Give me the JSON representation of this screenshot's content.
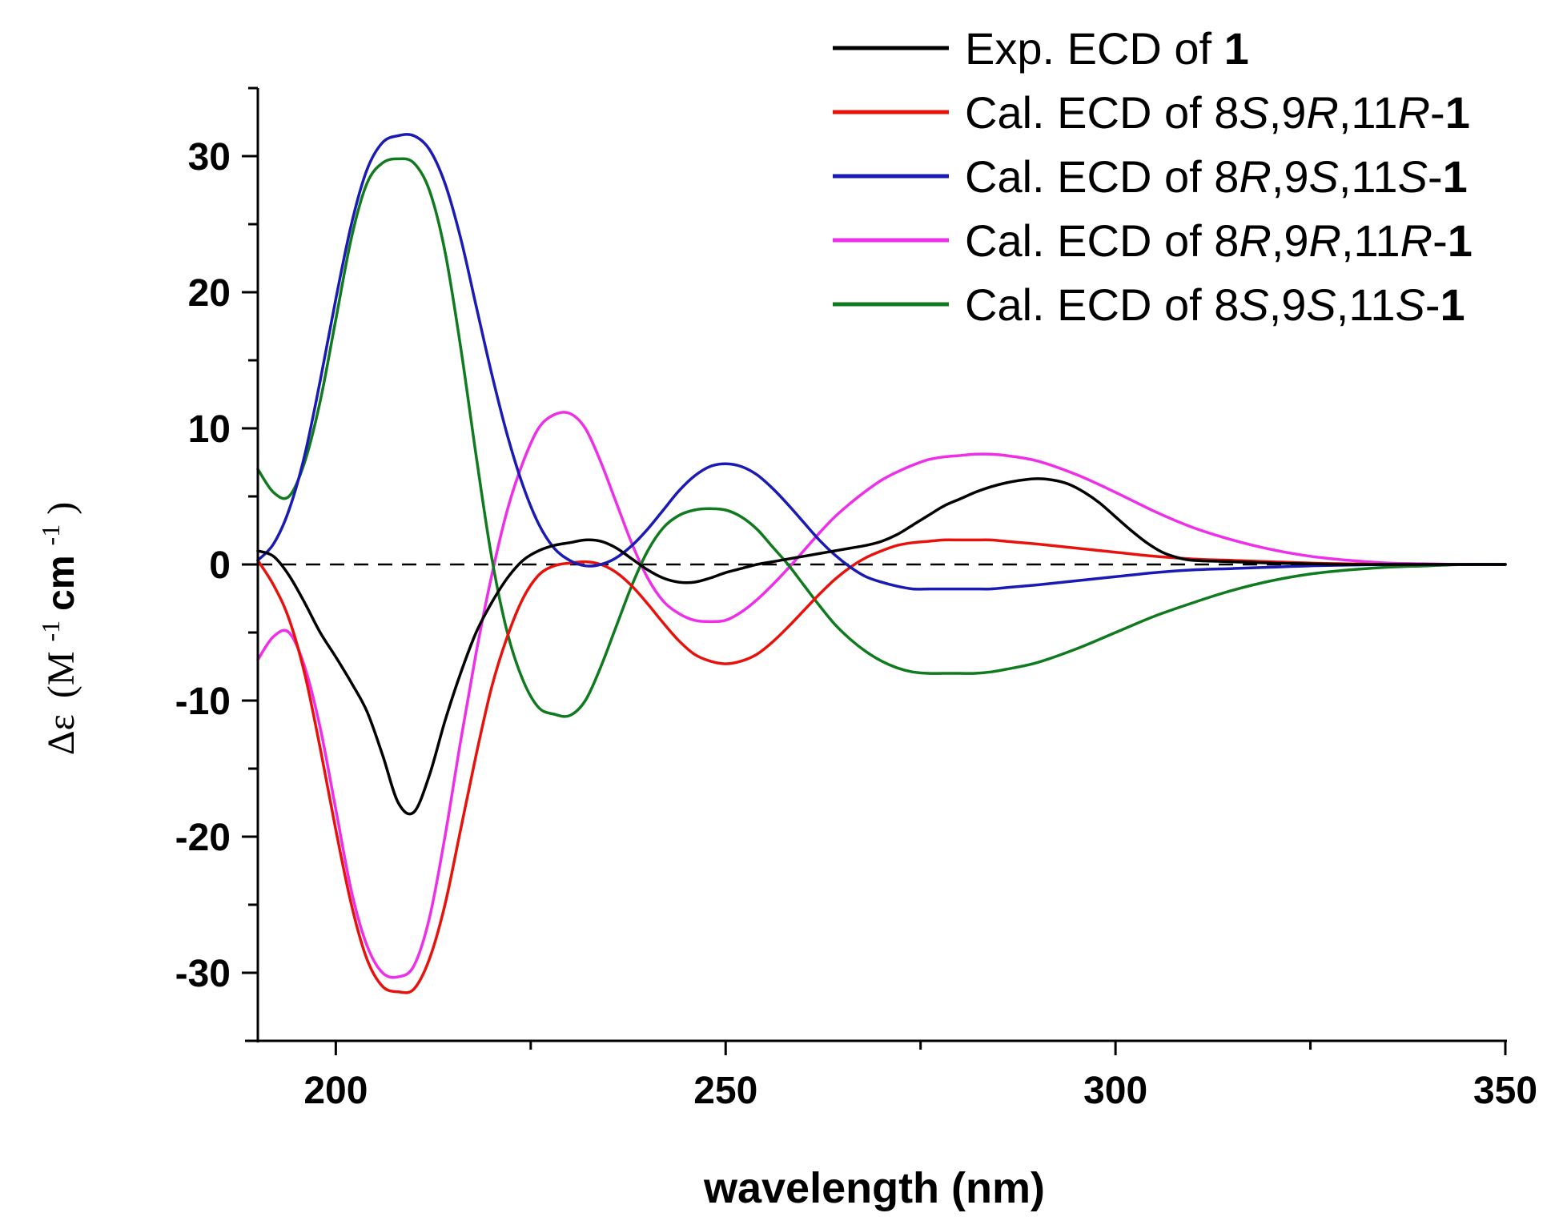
{
  "chart_data": {
    "type": "line",
    "xlabel": "wavelength (nm)",
    "ylabel": {
      "symbol": "Δε",
      "open": "(M",
      "sup1": "-1",
      "mid": " cm",
      "sup2": "-1",
      "close": ")"
    },
    "xlim": [
      190,
      350
    ],
    "ylim": [
      -35,
      35
    ],
    "x_major_ticks": [
      200,
      250,
      300,
      350
    ],
    "x_minor_ticks": [
      225,
      275,
      325
    ],
    "y_major_ticks": [
      -30,
      -20,
      -10,
      0,
      10,
      20,
      30
    ],
    "y_minor_ticks": [
      -35,
      -25,
      -15,
      -5,
      5,
      15,
      25,
      35
    ],
    "x_tick_labels": [
      "200",
      "250",
      "300",
      "350"
    ],
    "y_tick_labels": [
      "-30",
      "-20",
      "-10",
      "0",
      "10",
      "20",
      "30"
    ],
    "zero_line": {
      "y": 0,
      "style": "dashed",
      "color": "#000000"
    },
    "legend_position": "top-right",
    "series": [
      {
        "name": "Exp. ECD of 1",
        "legend": {
          "prefix": "Exp. ECD of ",
          "parts": [
            {
              "t": "1",
              "s": "bold"
            }
          ]
        },
        "color": "#000000",
        "x": [
          190,
          192,
          194,
          196,
          198,
          200,
          202,
          204,
          206,
          208,
          210,
          212,
          214,
          216,
          218,
          220,
          222,
          224,
          226,
          228,
          230,
          232,
          234,
          236,
          238,
          240,
          242,
          244,
          246,
          248,
          250,
          252,
          254,
          256,
          258,
          260,
          262,
          264,
          266,
          268,
          270,
          272,
          274,
          276,
          278,
          280,
          282,
          284,
          286,
          288,
          290,
          292,
          294,
          296,
          298,
          300,
          302,
          304,
          306,
          308,
          310,
          315,
          320,
          325,
          330,
          335,
          340,
          345,
          350
        ],
        "y": [
          1.0,
          0.6,
          -0.8,
          -2.8,
          -5.0,
          -6.8,
          -8.7,
          -10.8,
          -14.0,
          -17.5,
          -18.2,
          -15.5,
          -11.5,
          -8.0,
          -5.0,
          -2.8,
          -1.0,
          0.3,
          1.0,
          1.4,
          1.6,
          1.8,
          1.7,
          1.2,
          0.4,
          -0.4,
          -1.0,
          -1.3,
          -1.3,
          -1.0,
          -0.6,
          -0.3,
          0.0,
          0.2,
          0.4,
          0.6,
          0.8,
          1.0,
          1.2,
          1.4,
          1.7,
          2.2,
          2.9,
          3.6,
          4.3,
          4.8,
          5.3,
          5.7,
          6.0,
          6.2,
          6.3,
          6.2,
          5.9,
          5.3,
          4.5,
          3.5,
          2.5,
          1.6,
          0.9,
          0.5,
          0.3,
          0.2,
          0.1,
          0.05,
          0.0,
          0.0,
          0.0,
          0.0,
          0.0
        ]
      },
      {
        "name": "Cal. ECD of 8S,9R,11R-1",
        "legend": {
          "prefix": "Cal. ECD of ",
          "parts": [
            {
              "t": "8",
              "s": "n"
            },
            {
              "t": "S",
              "s": "i"
            },
            {
              "t": ",9",
              "s": "n"
            },
            {
              "t": "R",
              "s": "i"
            },
            {
              "t": ",11",
              "s": "n"
            },
            {
              "t": "R",
              "s": "i"
            },
            {
              "t": "-",
              "s": "n"
            },
            {
              "t": "1",
              "s": "bold"
            }
          ]
        },
        "color": "#e8120c",
        "x": [
          190,
          192,
          194,
          196,
          198,
          200,
          202,
          204,
          206,
          208,
          210,
          212,
          214,
          216,
          218,
          220,
          222,
          224,
          226,
          228,
          230,
          232,
          234,
          236,
          238,
          240,
          242,
          244,
          246,
          248,
          250,
          252,
          254,
          256,
          258,
          260,
          262,
          264,
          266,
          268,
          270,
          272,
          274,
          276,
          278,
          280,
          282,
          284,
          286,
          290,
          295,
          300,
          305,
          310,
          315,
          320,
          325,
          330,
          335,
          340,
          345,
          350
        ],
        "y": [
          0.3,
          -1.5,
          -4.0,
          -8.0,
          -13.5,
          -19.5,
          -25.0,
          -29.0,
          -31.0,
          -31.4,
          -31.2,
          -29.0,
          -25.0,
          -19.5,
          -14.0,
          -9.0,
          -5.3,
          -2.5,
          -0.8,
          -0.1,
          0.1,
          0.2,
          0.0,
          -0.6,
          -1.6,
          -2.9,
          -4.3,
          -5.6,
          -6.6,
          -7.1,
          -7.3,
          -7.1,
          -6.6,
          -5.7,
          -4.6,
          -3.4,
          -2.2,
          -1.1,
          -0.2,
          0.5,
          1.0,
          1.4,
          1.6,
          1.7,
          1.8,
          1.8,
          1.8,
          1.8,
          1.7,
          1.5,
          1.2,
          0.9,
          0.6,
          0.4,
          0.3,
          0.2,
          0.1,
          0.05,
          0.0,
          0.0,
          0.0,
          0.0
        ]
      },
      {
        "name": "Cal. ECD of 8R,9S,11S-1",
        "legend": {
          "prefix": "Cal. ECD of ",
          "parts": [
            {
              "t": "8",
              "s": "n"
            },
            {
              "t": "R",
              "s": "i"
            },
            {
              "t": ",9",
              "s": "n"
            },
            {
              "t": "S",
              "s": "i"
            },
            {
              "t": ",11",
              "s": "n"
            },
            {
              "t": "S",
              "s": "i"
            },
            {
              "t": "-",
              "s": "n"
            },
            {
              "t": "1",
              "s": "bold"
            }
          ]
        },
        "color": "#1a1ab4",
        "x": [
          190,
          192,
          194,
          196,
          198,
          200,
          202,
          204,
          206,
          208,
          210,
          212,
          214,
          216,
          218,
          220,
          222,
          224,
          226,
          228,
          230,
          232,
          234,
          236,
          238,
          240,
          242,
          244,
          246,
          248,
          250,
          252,
          254,
          256,
          258,
          260,
          262,
          264,
          266,
          268,
          270,
          272,
          274,
          276,
          278,
          280,
          282,
          284,
          286,
          290,
          295,
          300,
          305,
          310,
          315,
          320,
          325,
          330,
          335,
          340,
          345,
          350
        ],
        "y": [
          0.3,
          1.5,
          4.0,
          8.0,
          13.5,
          19.5,
          25.0,
          29.0,
          31.0,
          31.5,
          31.5,
          30.5,
          28.0,
          24.0,
          19.0,
          14.0,
          9.5,
          5.8,
          3.0,
          1.2,
          0.3,
          -0.1,
          0.0,
          0.5,
          1.4,
          2.6,
          4.0,
          5.4,
          6.5,
          7.2,
          7.4,
          7.2,
          6.6,
          5.6,
          4.4,
          3.1,
          1.8,
          0.7,
          -0.2,
          -0.9,
          -1.3,
          -1.6,
          -1.8,
          -1.8,
          -1.8,
          -1.8,
          -1.8,
          -1.8,
          -1.7,
          -1.5,
          -1.2,
          -0.9,
          -0.6,
          -0.4,
          -0.3,
          -0.2,
          -0.1,
          -0.05,
          0.0,
          0.0,
          0.0,
          0.0
        ]
      },
      {
        "name": "Cal. ECD of 8R,9R,11R-1",
        "legend": {
          "prefix": "Cal. ECD of ",
          "parts": [
            {
              "t": "8",
              "s": "n"
            },
            {
              "t": "R",
              "s": "i"
            },
            {
              "t": ",9",
              "s": "n"
            },
            {
              "t": "R",
              "s": "i"
            },
            {
              "t": ",11",
              "s": "n"
            },
            {
              "t": "R",
              "s": "i"
            },
            {
              "t": "-",
              "s": "n"
            },
            {
              "t": "1",
              "s": "bold"
            }
          ]
        },
        "color": "#ee2ee8",
        "x": [
          190,
          192,
          194,
          196,
          198,
          200,
          202,
          204,
          206,
          208,
          210,
          212,
          214,
          216,
          218,
          220,
          222,
          224,
          226,
          228,
          230,
          232,
          234,
          236,
          238,
          240,
          242,
          244,
          246,
          248,
          250,
          252,
          254,
          256,
          258,
          260,
          262,
          264,
          266,
          268,
          270,
          272,
          274,
          276,
          278,
          280,
          282,
          284,
          286,
          290,
          295,
          300,
          305,
          310,
          315,
          320,
          325,
          330,
          335,
          340,
          345,
          350
        ],
        "y": [
          -7.0,
          -5.3,
          -5.0,
          -7.5,
          -12.0,
          -18.0,
          -24.0,
          -28.0,
          -30.0,
          -30.3,
          -29.5,
          -26.0,
          -20.0,
          -13.0,
          -6.5,
          -0.8,
          4.0,
          7.5,
          10.0,
          11.0,
          11.1,
          10.0,
          7.5,
          4.5,
          1.5,
          -1.0,
          -2.7,
          -3.6,
          -4.1,
          -4.2,
          -4.1,
          -3.5,
          -2.6,
          -1.5,
          -0.3,
          1.0,
          2.3,
          3.5,
          4.5,
          5.4,
          6.2,
          6.8,
          7.3,
          7.7,
          7.9,
          8.0,
          8.1,
          8.1,
          8.0,
          7.6,
          6.6,
          5.3,
          3.9,
          2.7,
          1.8,
          1.1,
          0.6,
          0.3,
          0.1,
          0.05,
          0.0,
          0.0
        ]
      },
      {
        "name": "Cal. ECD of 8S,9S,11S-1",
        "legend": {
          "prefix": "Cal. ECD of ",
          "parts": [
            {
              "t": "8",
              "s": "n"
            },
            {
              "t": "S",
              "s": "i"
            },
            {
              "t": ",9",
              "s": "n"
            },
            {
              "t": "S",
              "s": "i"
            },
            {
              "t": ",11",
              "s": "n"
            },
            {
              "t": "S",
              "s": "i"
            },
            {
              "t": "-",
              "s": "n"
            },
            {
              "t": "1",
              "s": "bold"
            }
          ]
        },
        "color": "#0f7a1e",
        "x": [
          190,
          192,
          194,
          196,
          198,
          200,
          202,
          204,
          206,
          208,
          210,
          212,
          214,
          216,
          218,
          220,
          222,
          224,
          226,
          228,
          230,
          232,
          234,
          236,
          238,
          240,
          242,
          244,
          246,
          248,
          250,
          252,
          254,
          256,
          258,
          260,
          262,
          264,
          266,
          268,
          270,
          272,
          274,
          276,
          278,
          280,
          282,
          284,
          286,
          290,
          295,
          300,
          305,
          310,
          315,
          320,
          325,
          330,
          335,
          340,
          345,
          350
        ],
        "y": [
          7.0,
          5.3,
          5.0,
          7.5,
          12.0,
          18.0,
          24.0,
          28.0,
          29.5,
          29.8,
          29.5,
          27.5,
          23.0,
          16.0,
          8.0,
          0.5,
          -5.0,
          -8.5,
          -10.5,
          -11.0,
          -11.1,
          -10.0,
          -7.5,
          -4.5,
          -1.5,
          1.0,
          2.7,
          3.6,
          4.0,
          4.1,
          4.0,
          3.5,
          2.6,
          1.3,
          0.0,
          -1.5,
          -3.0,
          -4.4,
          -5.5,
          -6.4,
          -7.1,
          -7.6,
          -7.9,
          -8.0,
          -8.0,
          -8.0,
          -8.0,
          -7.9,
          -7.7,
          -7.2,
          -6.2,
          -5.0,
          -3.8,
          -2.8,
          -1.9,
          -1.2,
          -0.7,
          -0.4,
          -0.2,
          -0.1,
          0.0,
          0.0
        ]
      }
    ]
  }
}
